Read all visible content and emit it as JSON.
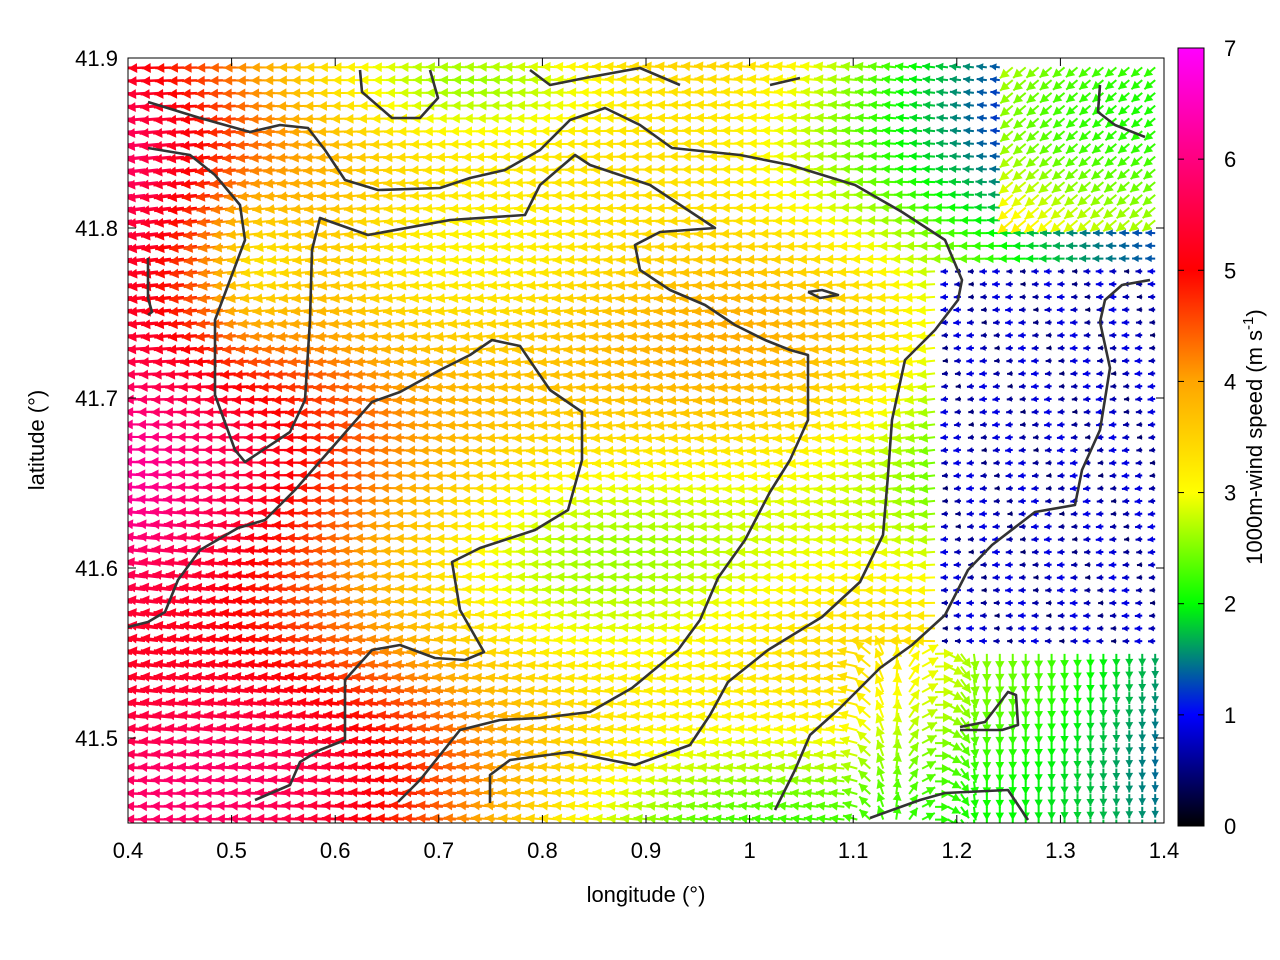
{
  "chart_data": {
    "type": "vector_field",
    "xlabel": "longitude (°)",
    "ylabel": "latitude (°)",
    "xlim": [
      0.4,
      1.4
    ],
    "ylim": [
      41.45,
      41.9
    ],
    "xticks": [
      "0.4",
      "0.5",
      "0.6",
      "0.7",
      "0.8",
      "0.9",
      "1",
      "1.1",
      "1.2",
      "1.3",
      "1.4"
    ],
    "yticks": [
      "41.5",
      "41.6",
      "41.7",
      "41.8",
      "41.9"
    ],
    "colorbar": {
      "label": "1000m-wind speed (m s",
      "label_sup": "-1",
      "label_end": ")",
      "range": [
        0,
        7
      ],
      "ticks": [
        "0",
        "1",
        "2",
        "3",
        "4",
        "5",
        "6",
        "7"
      ],
      "colors": [
        "#000000",
        "#0000ff",
        "#00ff00",
        "#ffff00",
        "#ffa500",
        "#ff0000",
        "#ff00ff"
      ]
    },
    "wind_regimes": [
      {
        "region": "west",
        "direction": "westward",
        "speed_approx": 5.0
      },
      {
        "region": "central",
        "direction": "westward",
        "speed_approx": 3.5
      },
      {
        "region": "east-center",
        "direction": "westward",
        "speed_approx": 2.0
      },
      {
        "region": "north-east",
        "direction": "variable",
        "speed_approx": 1.0
      },
      {
        "region": "south-east",
        "direction": "northward",
        "speed_approx": 1.5
      }
    ],
    "grid": false,
    "contours": "terrain contour lines (dark gray)"
  }
}
